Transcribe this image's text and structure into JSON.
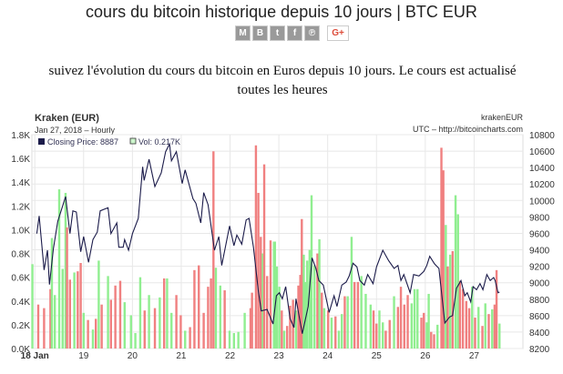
{
  "page": {
    "title": "cours du bitcoin historique depuis 10 jours | BTC EUR",
    "share_buttons": [
      {
        "icon": "gmail-icon",
        "label": "M"
      },
      {
        "icon": "blogger-icon",
        "label": "B"
      },
      {
        "icon": "twitter-icon",
        "label": "t"
      },
      {
        "icon": "facebook-icon",
        "label": "f"
      },
      {
        "icon": "pinterest-icon",
        "label": "℗"
      }
    ],
    "gplus_label": "G+",
    "subtitle": "suivez l'évolution du cours du bitcoin en Euros depuis 10 jours. Le cours est actualisé toutes les heures"
  },
  "chart_data": {
    "type": "line+bar",
    "title": "Kraken (EUR)",
    "subtitle": "Jan 27, 2018 – Hourly",
    "source_symbol": "krakenEUR",
    "source_note": "UTC – http://bitcoincharts.com",
    "legend": {
      "price": "Closing Price: 8887",
      "volume": "Vol: 0.217K",
      "placement": "top-left"
    },
    "colors": {
      "price": "#1b1b4a",
      "volume_up": "#90ee90",
      "volume_down": "#f08080",
      "grid": "#e8e8e8"
    },
    "grid": true,
    "x_ticks": [
      {
        "v": 18,
        "label": "18 Jan"
      },
      {
        "v": 19,
        "label": "19"
      },
      {
        "v": 20,
        "label": "20"
      },
      {
        "v": 21,
        "label": "21"
      },
      {
        "v": 22,
        "label": "22"
      },
      {
        "v": 23,
        "label": "23"
      },
      {
        "v": 24,
        "label": "24"
      },
      {
        "v": 25,
        "label": "25"
      },
      {
        "v": 26,
        "label": "26"
      },
      {
        "v": 27,
        "label": "27"
      }
    ],
    "xlim": [
      17.94,
      28.0
    ],
    "volume_axis": {
      "ylim": [
        0,
        1.8
      ],
      "ticks": [
        "0.0K",
        "0.2K",
        "0.4K",
        "0.6K",
        "0.8K",
        "1.0K",
        "1.2K",
        "1.4K",
        "1.6K",
        "1.8K"
      ]
    },
    "price_axis": {
      "ylim": [
        8200,
        10800
      ],
      "ticks": [
        "8200",
        "8400",
        "8600",
        "8800",
        "9000",
        "9200",
        "9400",
        "9600",
        "9800",
        "10000",
        "10200",
        "10400",
        "10600",
        "10800"
      ]
    },
    "price": [
      [
        18.04,
        9597
      ],
      [
        18.09,
        9812
      ],
      [
        18.19,
        9155
      ],
      [
        18.26,
        9395
      ],
      [
        18.3,
        8978
      ],
      [
        18.38,
        9414
      ],
      [
        18.47,
        9746
      ],
      [
        18.63,
        10048
      ],
      [
        18.72,
        9597
      ],
      [
        18.78,
        9874
      ],
      [
        18.85,
        9860
      ],
      [
        18.94,
        9376
      ],
      [
        19.0,
        9561
      ],
      [
        19.1,
        9248
      ],
      [
        19.19,
        9524
      ],
      [
        19.28,
        9616
      ],
      [
        19.34,
        9874
      ],
      [
        19.5,
        9912
      ],
      [
        19.56,
        9597
      ],
      [
        19.68,
        9727
      ],
      [
        19.72,
        9431
      ],
      [
        19.81,
        9431
      ],
      [
        19.84,
        9524
      ],
      [
        19.92,
        9395
      ],
      [
        20.0,
        9597
      ],
      [
        20.12,
        9782
      ],
      [
        20.21,
        10409
      ],
      [
        20.24,
        10243
      ],
      [
        20.34,
        10501
      ],
      [
        20.46,
        10169
      ],
      [
        20.59,
        10335
      ],
      [
        20.68,
        10593
      ],
      [
        20.76,
        10686
      ],
      [
        20.8,
        10483
      ],
      [
        20.9,
        10593
      ],
      [
        21.02,
        10206
      ],
      [
        21.08,
        10372
      ],
      [
        21.24,
        10022
      ],
      [
        21.3,
        9967
      ],
      [
        21.4,
        9727
      ],
      [
        21.46,
        10095
      ],
      [
        21.55,
        9948
      ],
      [
        21.68,
        9395
      ],
      [
        21.77,
        9561
      ],
      [
        21.83,
        9210
      ],
      [
        21.99,
        9690
      ],
      [
        22.08,
        9450
      ],
      [
        22.14,
        9580
      ],
      [
        22.24,
        9469
      ],
      [
        22.33,
        9763
      ],
      [
        22.39,
        9782
      ],
      [
        22.48,
        9431
      ],
      [
        22.58,
        8897
      ],
      [
        22.64,
        8657
      ],
      [
        22.76,
        8676
      ],
      [
        22.88,
        8499
      ],
      [
        22.95,
        8842
      ],
      [
        23.01,
        8878
      ],
      [
        23.07,
        8805
      ],
      [
        23.14,
        8952
      ],
      [
        23.23,
        8565
      ],
      [
        23.31,
        8454
      ],
      [
        23.35,
        8805
      ],
      [
        23.48,
        8380
      ],
      [
        23.6,
        8712
      ],
      [
        23.68,
        9303
      ],
      [
        23.76,
        9174
      ],
      [
        23.82,
        9026
      ],
      [
        23.91,
        8971
      ],
      [
        24.03,
        8639
      ],
      [
        24.13,
        8842
      ],
      [
        24.19,
        8712
      ],
      [
        24.29,
        8971
      ],
      [
        24.38,
        9008
      ],
      [
        24.44,
        9082
      ],
      [
        24.52,
        9237
      ],
      [
        24.6,
        9192
      ],
      [
        24.66,
        9026
      ],
      [
        24.75,
        8971
      ],
      [
        24.82,
        9100
      ],
      [
        24.93,
        8989
      ],
      [
        25.0,
        9192
      ],
      [
        25.13,
        9395
      ],
      [
        25.25,
        9266
      ],
      [
        25.36,
        9174
      ],
      [
        25.44,
        9210
      ],
      [
        25.5,
        9026
      ],
      [
        25.56,
        9100
      ],
      [
        25.69,
        8878
      ],
      [
        25.76,
        9100
      ],
      [
        25.87,
        9082
      ],
      [
        25.97,
        9137
      ],
      [
        26.03,
        9210
      ],
      [
        26.09,
        9321
      ],
      [
        26.19,
        9229
      ],
      [
        26.28,
        9174
      ],
      [
        26.4,
        8510
      ],
      [
        26.5,
        8584
      ],
      [
        26.56,
        8602
      ],
      [
        26.64,
        8934
      ],
      [
        26.73,
        9026
      ],
      [
        26.81,
        8842
      ],
      [
        26.86,
        8878
      ],
      [
        26.93,
        8768
      ],
      [
        26.98,
        8952
      ],
      [
        27.05,
        8915
      ],
      [
        27.12,
        8989
      ],
      [
        27.18,
        8915
      ],
      [
        27.26,
        9100
      ],
      [
        27.33,
        9026
      ],
      [
        27.4,
        9063
      ],
      [
        27.43,
        9026
      ],
      [
        27.49,
        8878
      ],
      [
        27.52,
        8887
      ]
    ],
    "volume": [
      [
        17.95,
        0.71,
        "up"
      ],
      [
        18.07,
        0.37,
        "down"
      ],
      [
        18.19,
        0.34,
        "down"
      ],
      [
        18.32,
        0.5,
        "down"
      ],
      [
        18.35,
        0.93,
        "up"
      ],
      [
        18.41,
        0.45,
        "up"
      ],
      [
        18.5,
        1.34,
        "up"
      ],
      [
        18.57,
        0.67,
        "up"
      ],
      [
        18.63,
        1.31,
        "up"
      ],
      [
        18.66,
        1.02,
        "down"
      ],
      [
        18.72,
        0.58,
        "down"
      ],
      [
        18.81,
        0.64,
        "up"
      ],
      [
        18.88,
        0.65,
        "down"
      ],
      [
        18.94,
        0.72,
        "down"
      ],
      [
        19.0,
        0.3,
        "up"
      ],
      [
        19.09,
        0.24,
        "down"
      ],
      [
        19.19,
        0.16,
        "up"
      ],
      [
        19.25,
        0.25,
        "down"
      ],
      [
        19.31,
        0.74,
        "up"
      ],
      [
        19.37,
        0.37,
        "down"
      ],
      [
        19.5,
        0.61,
        "up"
      ],
      [
        19.56,
        0.41,
        "down"
      ],
      [
        19.65,
        0.53,
        "down"
      ],
      [
        19.75,
        0.57,
        "down"
      ],
      [
        19.84,
        0.39,
        "up"
      ],
      [
        19.97,
        0.28,
        "up"
      ],
      [
        20.06,
        0.13,
        "up"
      ],
      [
        20.16,
        0.6,
        "up"
      ],
      [
        20.25,
        0.32,
        "down"
      ],
      [
        20.34,
        0.45,
        "up"
      ],
      [
        20.46,
        0.34,
        "down"
      ],
      [
        20.56,
        0.43,
        "up"
      ],
      [
        20.65,
        0.59,
        "down"
      ],
      [
        20.71,
        0.59,
        "up"
      ],
      [
        20.8,
        0.3,
        "up"
      ],
      [
        20.9,
        0.45,
        "down"
      ],
      [
        20.99,
        0.28,
        "down"
      ],
      [
        21.08,
        0.15,
        "up"
      ],
      [
        21.18,
        0.18,
        "down"
      ],
      [
        21.27,
        0.66,
        "down"
      ],
      [
        21.36,
        0.7,
        "down"
      ],
      [
        21.46,
        0.3,
        "down"
      ],
      [
        21.55,
        0.52,
        "down"
      ],
      [
        21.61,
        0.59,
        "down"
      ],
      [
        21.66,
        1.66,
        "down"
      ],
      [
        21.71,
        0.68,
        "up"
      ],
      [
        21.8,
        0.53,
        "up"
      ],
      [
        21.89,
        0.49,
        "down"
      ],
      [
        21.99,
        0.15,
        "up"
      ],
      [
        22.08,
        0.13,
        "up"
      ],
      [
        22.17,
        0.14,
        "up"
      ],
      [
        22.3,
        0.3,
        "up"
      ],
      [
        22.42,
        0.34,
        "down"
      ],
      [
        22.45,
        0.47,
        "down"
      ],
      [
        22.53,
        1.71,
        "down"
      ],
      [
        22.58,
        1.31,
        "down"
      ],
      [
        22.63,
        0.94,
        "down"
      ],
      [
        22.67,
        0.8,
        "up"
      ],
      [
        22.7,
        1.55,
        "down"
      ],
      [
        22.76,
        0.61,
        "down"
      ],
      [
        22.83,
        0.91,
        "down"
      ],
      [
        22.9,
        0.9,
        "up"
      ],
      [
        22.92,
        0.9,
        "up"
      ],
      [
        22.96,
        0.69,
        "up"
      ],
      [
        23.01,
        0.52,
        "up"
      ],
      [
        23.06,
        0.32,
        "down"
      ],
      [
        23.11,
        0.15,
        "up"
      ],
      [
        23.17,
        0.19,
        "down"
      ],
      [
        23.23,
        0.36,
        "down"
      ],
      [
        23.29,
        0.41,
        "down"
      ],
      [
        23.35,
        0.32,
        "up"
      ],
      [
        23.4,
        0.53,
        "down"
      ],
      [
        23.44,
        0.62,
        "down"
      ],
      [
        23.47,
        1.09,
        "down"
      ],
      [
        23.51,
        0.79,
        "up"
      ],
      [
        23.54,
        0.56,
        "up"
      ],
      [
        23.58,
        0.74,
        "up"
      ],
      [
        23.63,
        0.83,
        "up"
      ],
      [
        23.67,
        1.29,
        "up"
      ],
      [
        23.73,
        0.7,
        "up"
      ],
      [
        23.79,
        0.8,
        "down"
      ],
      [
        23.83,
        0.92,
        "up"
      ],
      [
        23.88,
        0.47,
        "down"
      ],
      [
        23.93,
        0.34,
        "up"
      ],
      [
        24.01,
        0.32,
        "down"
      ],
      [
        24.08,
        0.26,
        "up"
      ],
      [
        24.16,
        0.27,
        "down"
      ],
      [
        24.23,
        0.15,
        "up"
      ],
      [
        24.29,
        0.29,
        "up"
      ],
      [
        24.35,
        0.44,
        "down"
      ],
      [
        24.41,
        0.44,
        "up"
      ],
      [
        24.49,
        0.94,
        "up"
      ],
      [
        24.55,
        0.56,
        "down"
      ],
      [
        24.62,
        0.56,
        "down"
      ],
      [
        24.69,
        0.61,
        "up"
      ],
      [
        24.78,
        0.46,
        "up"
      ],
      [
        24.88,
        0.37,
        "up"
      ],
      [
        24.94,
        0.32,
        "down"
      ],
      [
        25.0,
        0.21,
        "down"
      ],
      [
        25.06,
        0.32,
        "up"
      ],
      [
        25.13,
        0.22,
        "up"
      ],
      [
        25.19,
        0.15,
        "down"
      ],
      [
        25.27,
        0.24,
        "down"
      ],
      [
        25.36,
        0.44,
        "up"
      ],
      [
        25.44,
        0.35,
        "down"
      ],
      [
        25.5,
        0.52,
        "down"
      ],
      [
        25.57,
        0.37,
        "down"
      ],
      [
        25.64,
        0.45,
        "down"
      ],
      [
        25.72,
        0.38,
        "up"
      ],
      [
        25.78,
        0.5,
        "up"
      ],
      [
        25.84,
        0.5,
        "up"
      ],
      [
        25.92,
        0.26,
        "down"
      ],
      [
        25.97,
        0.3,
        "down"
      ],
      [
        26.03,
        0.22,
        "up"
      ],
      [
        26.07,
        0.46,
        "up"
      ],
      [
        26.12,
        0.14,
        "down"
      ],
      [
        26.18,
        0.12,
        "down"
      ],
      [
        26.25,
        0.2,
        "up"
      ],
      [
        26.33,
        1.69,
        "down"
      ],
      [
        26.37,
        1.5,
        "down"
      ],
      [
        26.42,
        1.04,
        "up"
      ],
      [
        26.46,
        0.69,
        "down"
      ],
      [
        26.51,
        0.79,
        "up"
      ],
      [
        26.56,
        0.82,
        "down"
      ],
      [
        26.62,
        1.29,
        "up"
      ],
      [
        26.67,
        1.13,
        "up"
      ],
      [
        26.71,
        0.57,
        "down"
      ],
      [
        26.77,
        0.5,
        "down"
      ],
      [
        26.84,
        0.4,
        "down"
      ],
      [
        26.9,
        0.34,
        "down"
      ],
      [
        26.96,
        0.52,
        "up"
      ],
      [
        27.02,
        0.26,
        "down"
      ],
      [
        27.09,
        0.35,
        "up"
      ],
      [
        27.17,
        0.19,
        "down"
      ],
      [
        27.23,
        0.38,
        "up"
      ],
      [
        27.3,
        0.29,
        "down"
      ],
      [
        27.37,
        0.33,
        "up"
      ],
      [
        27.42,
        0.37,
        "down"
      ],
      [
        27.46,
        0.66,
        "down"
      ],
      [
        27.52,
        0.21,
        "up"
      ]
    ]
  }
}
